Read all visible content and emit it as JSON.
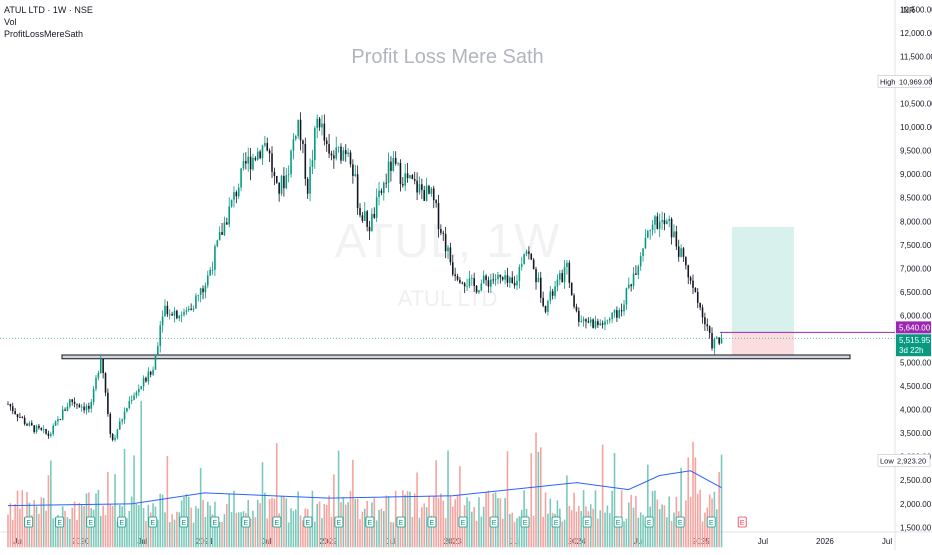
{
  "legend": {
    "symbol": "ATUL LTD · 1W · NSE",
    "vol": "Vol",
    "indicator": "ProfitLossMereSath"
  },
  "watermark": {
    "title": "Profit Loss Mere Sath",
    "ticker": "ATUL, 1W",
    "name": "ATUL LTD"
  },
  "chart_data": {
    "type": "candlestick",
    "currency": "INR",
    "y_ticks": [
      1500,
      2000,
      2500,
      3000,
      3500,
      4000,
      4500,
      5000,
      5500,
      6000,
      6500,
      7000,
      7500,
      8000,
      8500,
      9000,
      9500,
      10000,
      10500,
      11000,
      11500,
      12000,
      12500
    ],
    "ylim": [
      1400,
      12700
    ],
    "x_ticks": [
      "Jul",
      "2020",
      "Jul",
      "2021",
      "Jul",
      "2022",
      "Jul",
      "2023",
      "Jul",
      "2024",
      "Jul",
      "2025",
      "Jul",
      "2026",
      "Jul"
    ],
    "xlim": [
      "2019-06",
      "2026-07"
    ],
    "labels": {
      "high": {
        "text": "High",
        "value": "10,969.00"
      },
      "low": {
        "text": "Low",
        "value": "2,923.20"
      },
      "target_price": "5,640.00",
      "last_price": "5,515.95",
      "countdown": "3d 22h"
    },
    "support_zone": [
      5080,
      5160
    ],
    "position": {
      "entry": 5640,
      "stop": 5150,
      "target": 7880,
      "start": "2025-04",
      "end": "2025-10"
    },
    "last_price_value": 5515.95,
    "price_path": [
      {
        "t": "2019-06",
        "v": 4120
      },
      {
        "t": "2019-08",
        "v": 3650
      },
      {
        "t": "2019-10",
        "v": 3450
      },
      {
        "t": "2019-12",
        "v": 4200
      },
      {
        "t": "2020-02",
        "v": 4000
      },
      {
        "t": "2020-03",
        "v": 5200
      },
      {
        "t": "2020-04",
        "v": 3300
      },
      {
        "t": "2020-06",
        "v": 4300
      },
      {
        "t": "2020-08",
        "v": 4800
      },
      {
        "t": "2020-09",
        "v": 6200
      },
      {
        "t": "2020-11",
        "v": 6000
      },
      {
        "t": "2021-01",
        "v": 6600
      },
      {
        "t": "2021-03",
        "v": 8000
      },
      {
        "t": "2021-05",
        "v": 9200
      },
      {
        "t": "2021-07",
        "v": 9700
      },
      {
        "t": "2021-08",
        "v": 8600
      },
      {
        "t": "2021-09",
        "v": 9000
      },
      {
        "t": "2021-10",
        "v": 10200
      },
      {
        "t": "2021-11",
        "v": 8700
      },
      {
        "t": "2021-12",
        "v": 10300
      },
      {
        "t": "2022-01",
        "v": 9300
      },
      {
        "t": "2022-03",
        "v": 9600
      },
      {
        "t": "2022-04",
        "v": 8200
      },
      {
        "t": "2022-05",
        "v": 7900
      },
      {
        "t": "2022-07",
        "v": 9200
      },
      {
        "t": "2022-09",
        "v": 8800
      },
      {
        "t": "2022-11",
        "v": 8500
      },
      {
        "t": "2023-01",
        "v": 7000
      },
      {
        "t": "2023-03",
        "v": 6600
      },
      {
        "t": "2023-05",
        "v": 6800
      },
      {
        "t": "2023-07",
        "v": 6600
      },
      {
        "t": "2023-08",
        "v": 7500
      },
      {
        "t": "2023-10",
        "v": 6200
      },
      {
        "t": "2023-12",
        "v": 7000
      },
      {
        "t": "2024-01",
        "v": 6000
      },
      {
        "t": "2024-03",
        "v": 5800
      },
      {
        "t": "2024-05",
        "v": 6000
      },
      {
        "t": "2024-07",
        "v": 7200
      },
      {
        "t": "2024-08",
        "v": 8000
      },
      {
        "t": "2024-10",
        "v": 7900
      },
      {
        "t": "2024-11",
        "v": 7300
      },
      {
        "t": "2024-12",
        "v": 6800
      },
      {
        "t": "2025-02",
        "v": 5400
      },
      {
        "t": "2025-03",
        "v": 5500
      }
    ],
    "volume_ma": [
      {
        "t": "2019-06",
        "v": 1960
      },
      {
        "t": "2020-06",
        "v": 2000
      },
      {
        "t": "2021-01",
        "v": 2230
      },
      {
        "t": "2022-01",
        "v": 2120
      },
      {
        "t": "2023-01",
        "v": 2170
      },
      {
        "t": "2024-01",
        "v": 2450
      },
      {
        "t": "2024-06",
        "v": 2300
      },
      {
        "t": "2024-09",
        "v": 2600
      },
      {
        "t": "2024-12",
        "v": 2700
      },
      {
        "t": "2025-03",
        "v": 2340
      }
    ],
    "volume_spikes": [
      {
        "t": "2020-07",
        "v": 4400
      },
      {
        "t": "2020-04",
        "v": 3200
      },
      {
        "t": "2024-05",
        "v": 3600
      },
      {
        "t": "2023-09",
        "v": 3700
      },
      {
        "t": "2024-12",
        "v": 3700
      },
      {
        "t": "2025-03",
        "v": 3200
      }
    ],
    "colors": {
      "up": "#089981",
      "down": "#131722",
      "vol_up": "#7cc9bb",
      "vol_down": "#f4a4a0",
      "vol_ma": "#2962ff",
      "target_zone": "#d9f1ec",
      "stop_zone": "#fbdde0",
      "target_label": "#9c27b0",
      "price_label": "#089981"
    }
  }
}
